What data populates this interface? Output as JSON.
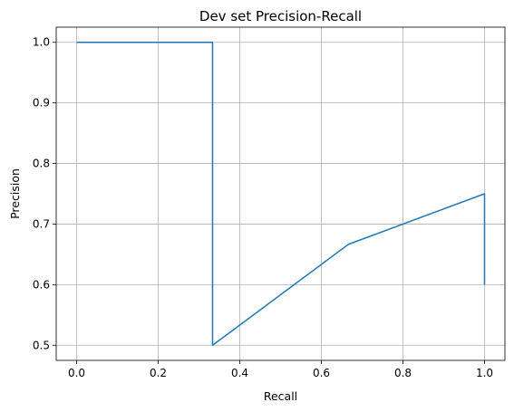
{
  "chart_data": {
    "type": "line",
    "title": "Dev set Precision-Recall",
    "xlabel": "Recall",
    "ylabel": "Precision",
    "xlim": [
      -0.05,
      1.05
    ],
    "ylim": [
      0.475,
      1.025
    ],
    "xticks": [
      0.0,
      0.2,
      0.4,
      0.6,
      0.8,
      1.0
    ],
    "xtick_labels": [
      "0.0",
      "0.2",
      "0.4",
      "0.6",
      "0.8",
      "1.0"
    ],
    "yticks": [
      0.5,
      0.6,
      0.7,
      0.8,
      0.9,
      1.0
    ],
    "ytick_labels": [
      "0.5",
      "0.6",
      "0.7",
      "0.8",
      "0.9",
      "1.0"
    ],
    "grid": true,
    "series": [
      {
        "color": "#1f77b4",
        "x": [
          0.0,
          0.3333,
          0.3333,
          0.6667,
          1.0,
          1.0
        ],
        "y": [
          1.0,
          1.0,
          0.5,
          0.6667,
          0.75,
          0.6
        ]
      }
    ]
  }
}
